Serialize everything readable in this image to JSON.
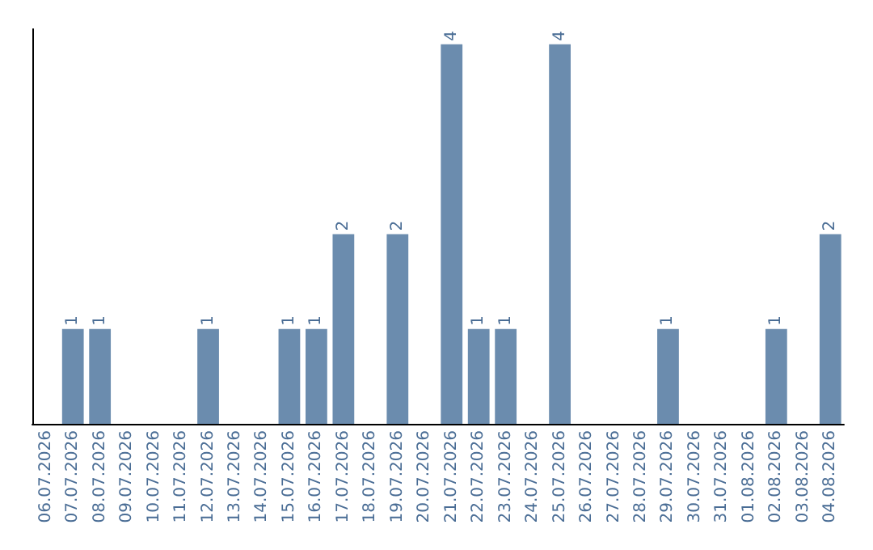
{
  "chart_data": {
    "type": "bar",
    "categories": [
      "06.07.2026",
      "07.07.2026",
      "08.07.2026",
      "09.07.2026",
      "10.07.2026",
      "11.07.2026",
      "12.07.2026",
      "13.07.2026",
      "14.07.2026",
      "15.07.2026",
      "16.07.2026",
      "17.07.2026",
      "18.07.2026",
      "19.07.2026",
      "20.07.2026",
      "21.07.2026",
      "22.07.2026",
      "23.07.2026",
      "24.07.2026",
      "25.07.2026",
      "26.07.2026",
      "27.07.2026",
      "28.07.2026",
      "29.07.2026",
      "30.07.2026",
      "31.07.2026",
      "01.08.2026",
      "02.08.2026",
      "03.08.2026",
      "04.08.2026"
    ],
    "values": [
      0,
      1,
      1,
      0,
      0,
      0,
      1,
      0,
      0,
      1,
      1,
      2,
      0,
      2,
      0,
      4,
      1,
      1,
      0,
      4,
      0,
      0,
      0,
      1,
      0,
      0,
      0,
      1,
      0,
      2
    ],
    "value_labels": [
      null,
      "1",
      "1",
      null,
      null,
      null,
      "1",
      null,
      null,
      "1",
      "1",
      "2",
      null,
      "2",
      null,
      "4",
      "1",
      "1",
      null,
      "4",
      null,
      null,
      null,
      "1",
      null,
      null,
      null,
      "1",
      null,
      "2"
    ],
    "color": "#6b8cae",
    "grid": false,
    "tick_labels": "x"
  }
}
